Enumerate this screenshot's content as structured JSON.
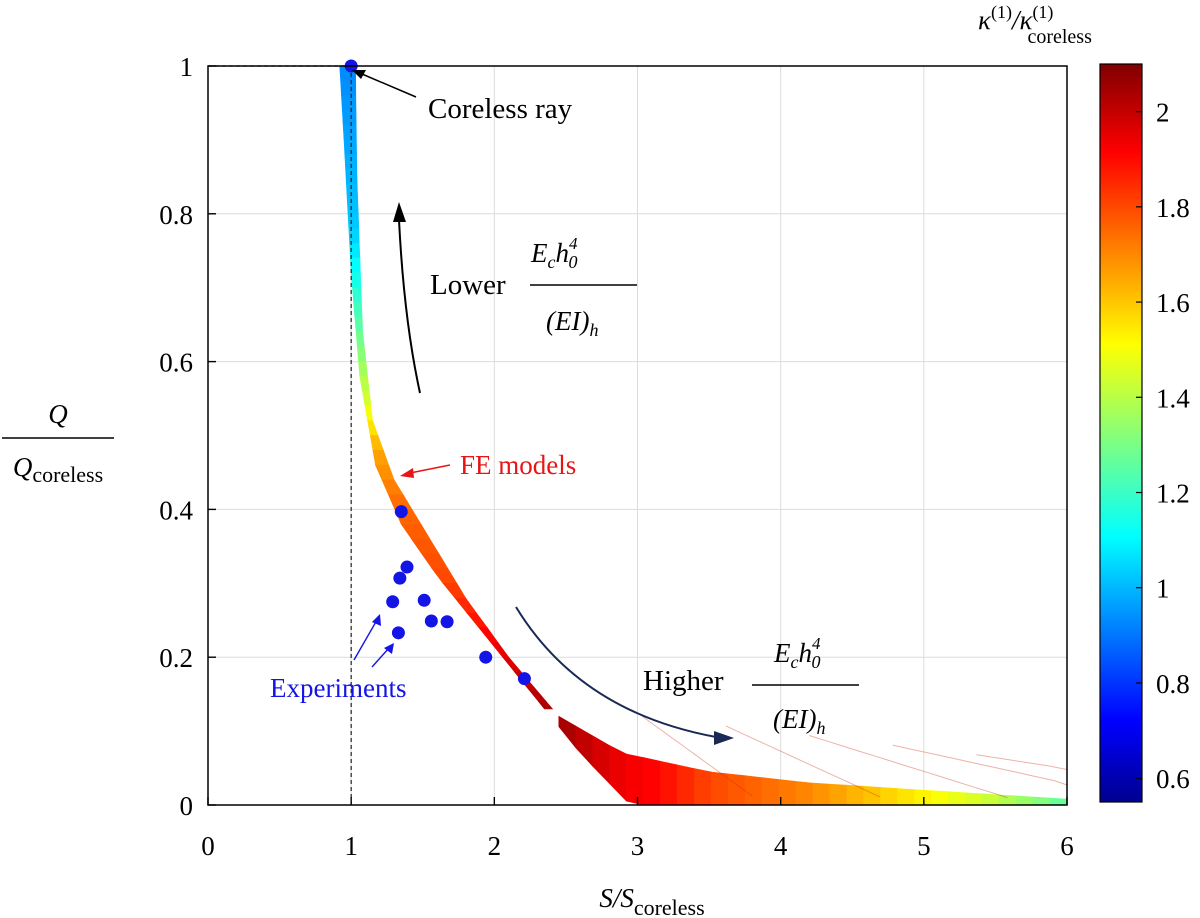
{
  "chart_data": {
    "type": "scatter",
    "xlabel": {
      "main": "S/S",
      "sub": "coreless"
    },
    "ylabel": {
      "num": "Q",
      "den_main": "Q",
      "den_sub": "coreless"
    },
    "xlim": [
      0,
      6
    ],
    "ylim": [
      0,
      1
    ],
    "xticks": [
      0,
      1,
      2,
      3,
      4,
      5,
      6
    ],
    "yticks": [
      0,
      0.2,
      0.4,
      0.6,
      0.8,
      1
    ],
    "xtick_labels": [
      "0",
      "1",
      "2",
      "3",
      "4",
      "5",
      "6"
    ],
    "ytick_labels": [
      "0",
      "0.2",
      "0.4",
      "0.6",
      "0.8",
      "1"
    ],
    "grid": true,
    "experiments": {
      "name": "Experiments",
      "color": "#1414e6",
      "points": [
        [
          1.0,
          1.0
        ],
        [
          1.35,
          0.397
        ],
        [
          1.39,
          0.322
        ],
        [
          1.34,
          0.307
        ],
        [
          1.29,
          0.275
        ],
        [
          1.33,
          0.233
        ],
        [
          1.51,
          0.277
        ],
        [
          1.56,
          0.249
        ],
        [
          1.67,
          0.248
        ],
        [
          1.94,
          0.2
        ],
        [
          2.21,
          0.171
        ]
      ]
    },
    "fe_models": {
      "name": "FE models",
      "color_range": [
        0.55,
        2.1
      ],
      "upper_curve": [
        [
          1.03,
          1.0
        ],
        [
          1.04,
          0.85
        ],
        [
          1.08,
          0.64
        ],
        [
          1.15,
          0.52
        ],
        [
          1.3,
          0.44
        ],
        [
          1.55,
          0.36
        ],
        [
          1.8,
          0.28
        ],
        [
          2.1,
          0.2
        ],
        [
          2.45,
          0.12
        ],
        [
          2.9,
          0.07
        ],
        [
          3.5,
          0.045
        ],
        [
          4.2,
          0.03
        ],
        [
          5.0,
          0.02
        ],
        [
          6.0,
          0.008
        ]
      ],
      "lower_curve": [
        [
          0.92,
          1.0
        ],
        [
          0.95,
          0.9
        ],
        [
          1.0,
          0.72
        ],
        [
          1.06,
          0.58
        ],
        [
          1.17,
          0.46
        ],
        [
          1.35,
          0.38
        ],
        [
          1.6,
          0.31
        ],
        [
          1.85,
          0.25
        ],
        [
          2.1,
          0.19
        ],
        [
          2.35,
          0.13
        ],
        [
          2.6,
          0.07
        ],
        [
          2.8,
          0.03
        ],
        [
          2.95,
          0.0
        ],
        [
          4.0,
          0.0
        ],
        [
          6.0,
          0.0
        ]
      ],
      "color_stops": [
        [
          1.0,
          0.95
        ],
        [
          0.78,
          1.05
        ],
        [
          0.66,
          1.25
        ],
        [
          0.55,
          1.45
        ],
        [
          0.48,
          1.65
        ],
        [
          0.4,
          1.75
        ],
        [
          0.3,
          1.8
        ],
        [
          0.2,
          1.95
        ],
        [
          0.12,
          2.05
        ],
        [
          0.06,
          1.9
        ],
        [
          0.03,
          1.7
        ],
        [
          0.015,
          1.45
        ],
        [
          0.005,
          1.2
        ]
      ]
    },
    "colorbar": {
      "title_main": "κ",
      "title_sup": "(1)",
      "title_slash": "/κ",
      "title_sub": "coreless",
      "title_sup2": "(1)",
      "min": 0.55,
      "max": 2.1,
      "ticks": [
        0.6,
        0.8,
        1,
        1.2,
        1.4,
        1.6,
        1.8,
        2
      ],
      "tick_labels": [
        "0.6",
        "0.8",
        "1",
        "1.2",
        "1.4",
        "1.6",
        "1.8",
        "2"
      ],
      "colormap": "jet"
    },
    "reference_lines": {
      "vertical_x": 1,
      "horizontal_y": 1
    },
    "annotations": {
      "coreless_ray": {
        "text": "Coreless ray",
        "x": 1.0,
        "y": 1.0
      },
      "fe_models": {
        "text": "FE models",
        "color": "#e81515",
        "x": 1.37,
        "y": 0.445
      },
      "experiments": {
        "text": "Experiments",
        "color": "#1414e6",
        "targets": [
          [
            1.29,
            0.26
          ],
          [
            1.33,
            0.22
          ]
        ]
      },
      "lower": {
        "word": "Lower",
        "num_main": "E",
        "num_sub": "c",
        "num_h": "h",
        "num_sub2": "0",
        "num_sup": "4",
        "den": "(EI)",
        "den_sub": "h"
      },
      "higher": {
        "word": "Higher",
        "num_main": "E",
        "num_sub": "c",
        "num_h": "h",
        "num_sub2": "0",
        "num_sup": "4",
        "den": "(EI)",
        "den_sub": "h"
      }
    }
  }
}
